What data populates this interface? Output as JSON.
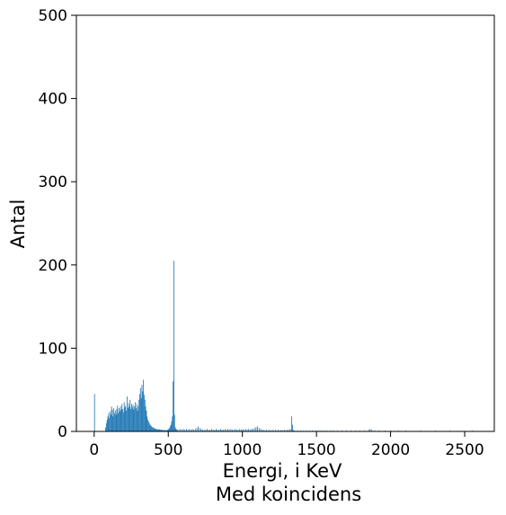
{
  "chart_data": {
    "type": "bar",
    "title": "",
    "xlabel": "Energi, i KeV",
    "subtitle": "Med koincidens",
    "ylabel": "Antal",
    "xlim": [
      -120,
      2700
    ],
    "ylim": [
      0,
      500
    ],
    "xticks": [
      0,
      500,
      1000,
      1500,
      2000,
      2500
    ],
    "yticks": [
      0,
      100,
      200,
      300,
      400,
      500
    ],
    "grid": false,
    "bar_color": "#1f77b4",
    "bin_width_kev": 5,
    "bins": [
      [
        0,
        45
      ],
      [
        75,
        5
      ],
      [
        80,
        10
      ],
      [
        85,
        14
      ],
      [
        90,
        18
      ],
      [
        95,
        22
      ],
      [
        100,
        16
      ],
      [
        105,
        24
      ],
      [
        110,
        20
      ],
      [
        115,
        30
      ],
      [
        120,
        26
      ],
      [
        125,
        18
      ],
      [
        130,
        28
      ],
      [
        135,
        22
      ],
      [
        140,
        25
      ],
      [
        145,
        20
      ],
      [
        150,
        27
      ],
      [
        155,
        31
      ],
      [
        160,
        22
      ],
      [
        165,
        28
      ],
      [
        170,
        24
      ],
      [
        175,
        30
      ],
      [
        180,
        26
      ],
      [
        185,
        33
      ],
      [
        190,
        27
      ],
      [
        195,
        23
      ],
      [
        200,
        35
      ],
      [
        205,
        29
      ],
      [
        210,
        31
      ],
      [
        215,
        25
      ],
      [
        220,
        42
      ],
      [
        225,
        28
      ],
      [
        230,
        34
      ],
      [
        235,
        30
      ],
      [
        240,
        38
      ],
      [
        245,
        27
      ],
      [
        250,
        33
      ],
      [
        255,
        29
      ],
      [
        260,
        32
      ],
      [
        265,
        26
      ],
      [
        270,
        30
      ],
      [
        275,
        35
      ],
      [
        280,
        28
      ],
      [
        285,
        33
      ],
      [
        290,
        25
      ],
      [
        295,
        30
      ],
      [
        300,
        38
      ],
      [
        305,
        45
      ],
      [
        310,
        52
      ],
      [
        315,
        40
      ],
      [
        320,
        56
      ],
      [
        325,
        48
      ],
      [
        330,
        62
      ],
      [
        335,
        44
      ],
      [
        340,
        38
      ],
      [
        345,
        30
      ],
      [
        350,
        25
      ],
      [
        355,
        18
      ],
      [
        360,
        14
      ],
      [
        365,
        12
      ],
      [
        370,
        10
      ],
      [
        375,
        8
      ],
      [
        380,
        7
      ],
      [
        385,
        6
      ],
      [
        390,
        5
      ],
      [
        395,
        5
      ],
      [
        400,
        4
      ],
      [
        405,
        4
      ],
      [
        410,
        3
      ],
      [
        415,
        3
      ],
      [
        420,
        3
      ],
      [
        425,
        2
      ],
      [
        430,
        2
      ],
      [
        435,
        3
      ],
      [
        440,
        2
      ],
      [
        445,
        2
      ],
      [
        450,
        2
      ],
      [
        455,
        2
      ],
      [
        460,
        1
      ],
      [
        465,
        2
      ],
      [
        470,
        1
      ],
      [
        475,
        2
      ],
      [
        480,
        1
      ],
      [
        485,
        1
      ],
      [
        490,
        2
      ],
      [
        495,
        2
      ],
      [
        500,
        3
      ],
      [
        505,
        4
      ],
      [
        510,
        6
      ],
      [
        515,
        8
      ],
      [
        520,
        12
      ],
      [
        525,
        18
      ],
      [
        530,
        60
      ],
      [
        535,
        205
      ],
      [
        540,
        20
      ],
      [
        545,
        5
      ],
      [
        550,
        3
      ],
      [
        555,
        2
      ],
      [
        560,
        2
      ],
      [
        570,
        2
      ],
      [
        580,
        3
      ],
      [
        590,
        2
      ],
      [
        600,
        3
      ],
      [
        610,
        2
      ],
      [
        620,
        3
      ],
      [
        630,
        2
      ],
      [
        640,
        3
      ],
      [
        650,
        2
      ],
      [
        660,
        3
      ],
      [
        670,
        2
      ],
      [
        680,
        3
      ],
      [
        690,
        4
      ],
      [
        700,
        6
      ],
      [
        710,
        4
      ],
      [
        720,
        3
      ],
      [
        730,
        2
      ],
      [
        740,
        2
      ],
      [
        750,
        2
      ],
      [
        760,
        3
      ],
      [
        770,
        2
      ],
      [
        780,
        2
      ],
      [
        790,
        3
      ],
      [
        800,
        2
      ],
      [
        810,
        2
      ],
      [
        820,
        3
      ],
      [
        830,
        2
      ],
      [
        840,
        2
      ],
      [
        850,
        3
      ],
      [
        860,
        2
      ],
      [
        870,
        2
      ],
      [
        880,
        3
      ],
      [
        890,
        2
      ],
      [
        900,
        3
      ],
      [
        910,
        2
      ],
      [
        920,
        3
      ],
      [
        930,
        2
      ],
      [
        940,
        2
      ],
      [
        950,
        3
      ],
      [
        960,
        2
      ],
      [
        970,
        2
      ],
      [
        980,
        3
      ],
      [
        990,
        2
      ],
      [
        1000,
        3
      ],
      [
        1010,
        2
      ],
      [
        1020,
        3
      ],
      [
        1030,
        2
      ],
      [
        1040,
        3
      ],
      [
        1050,
        2
      ],
      [
        1060,
        3
      ],
      [
        1070,
        3
      ],
      [
        1080,
        4
      ],
      [
        1090,
        5
      ],
      [
        1100,
        6
      ],
      [
        1110,
        4
      ],
      [
        1120,
        3
      ],
      [
        1130,
        2
      ],
      [
        1140,
        2
      ],
      [
        1150,
        1
      ],
      [
        1160,
        2
      ],
      [
        1170,
        1
      ],
      [
        1180,
        2
      ],
      [
        1190,
        1
      ],
      [
        1200,
        2
      ],
      [
        1210,
        1
      ],
      [
        1220,
        2
      ],
      [
        1230,
        1
      ],
      [
        1240,
        2
      ],
      [
        1250,
        1
      ],
      [
        1260,
        2
      ],
      [
        1270,
        1
      ],
      [
        1280,
        2
      ],
      [
        1290,
        1
      ],
      [
        1300,
        2
      ],
      [
        1310,
        2
      ],
      [
        1320,
        3
      ],
      [
        1330,
        18
      ],
      [
        1335,
        8
      ],
      [
        1340,
        2
      ],
      [
        1350,
        1
      ],
      [
        1370,
        1
      ],
      [
        1390,
        1
      ],
      [
        1410,
        1
      ],
      [
        1430,
        1
      ],
      [
        1450,
        1
      ],
      [
        1470,
        1
      ],
      [
        1490,
        1
      ],
      [
        1510,
        1
      ],
      [
        1530,
        1
      ],
      [
        1550,
        1
      ],
      [
        1570,
        1
      ],
      [
        1590,
        1
      ],
      [
        1610,
        1
      ],
      [
        1640,
        1
      ],
      [
        1670,
        1
      ],
      [
        1700,
        1
      ],
      [
        1730,
        1
      ],
      [
        1760,
        1
      ],
      [
        1790,
        1
      ],
      [
        1820,
        1
      ],
      [
        1850,
        2
      ],
      [
        1860,
        3
      ],
      [
        1870,
        2
      ],
      [
        1890,
        1
      ],
      [
        1920,
        1
      ],
      [
        1960,
        1
      ],
      [
        2000,
        1
      ],
      [
        2050,
        1
      ],
      [
        2100,
        1
      ],
      [
        2200,
        1
      ],
      [
        2300,
        1
      ],
      [
        2400,
        1
      ],
      [
        2550,
        1
      ]
    ]
  }
}
